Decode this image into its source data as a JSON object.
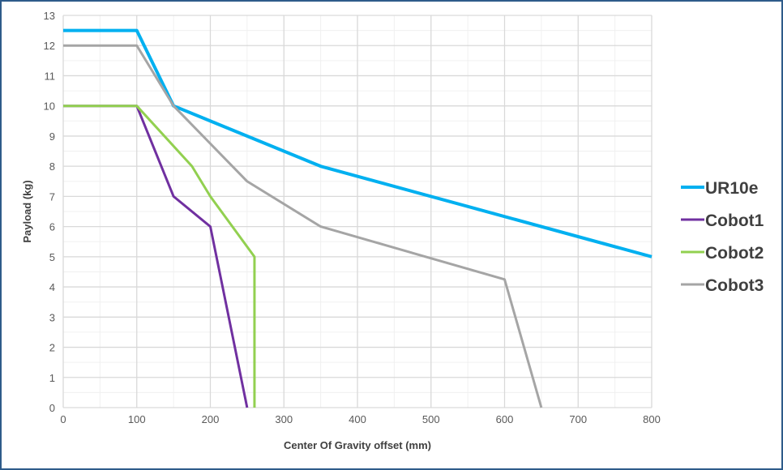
{
  "chart_data": {
    "type": "line",
    "title": "",
    "xlabel": "Center Of Gravity offset (mm)",
    "ylabel": "Payload (kg)",
    "xlim": [
      0,
      800
    ],
    "ylim": [
      0,
      13
    ],
    "xticks": [
      0,
      100,
      200,
      300,
      400,
      500,
      600,
      700,
      800
    ],
    "yticks": [
      0,
      1,
      2,
      3,
      4,
      5,
      6,
      7,
      8,
      9,
      10,
      11,
      12,
      13
    ],
    "grid": true,
    "legend_position": "right",
    "series": [
      {
        "name": "UR10e",
        "color": "#00b0f0",
        "points": [
          [
            0,
            12.5
          ],
          [
            100,
            12.5
          ],
          [
            150,
            10
          ],
          [
            350,
            8
          ],
          [
            800,
            5
          ]
        ]
      },
      {
        "name": "Cobot1",
        "color": "#7030a0",
        "points": [
          [
            0,
            10
          ],
          [
            100,
            10
          ],
          [
            150,
            7
          ],
          [
            200,
            6
          ],
          [
            250,
            0
          ]
        ]
      },
      {
        "name": "Cobot2",
        "color": "#92d050",
        "points": [
          [
            0,
            10
          ],
          [
            100,
            10
          ],
          [
            175,
            8
          ],
          [
            200,
            7
          ],
          [
            260,
            5
          ],
          [
            260,
            0
          ]
        ]
      },
      {
        "name": "Cobot3",
        "color": "#a5a5a5",
        "points": [
          [
            0,
            12
          ],
          [
            100,
            12
          ],
          [
            150,
            10
          ],
          [
            250,
            7.5
          ],
          [
            350,
            6
          ],
          [
            600,
            4.25
          ],
          [
            650,
            0
          ]
        ]
      }
    ]
  }
}
